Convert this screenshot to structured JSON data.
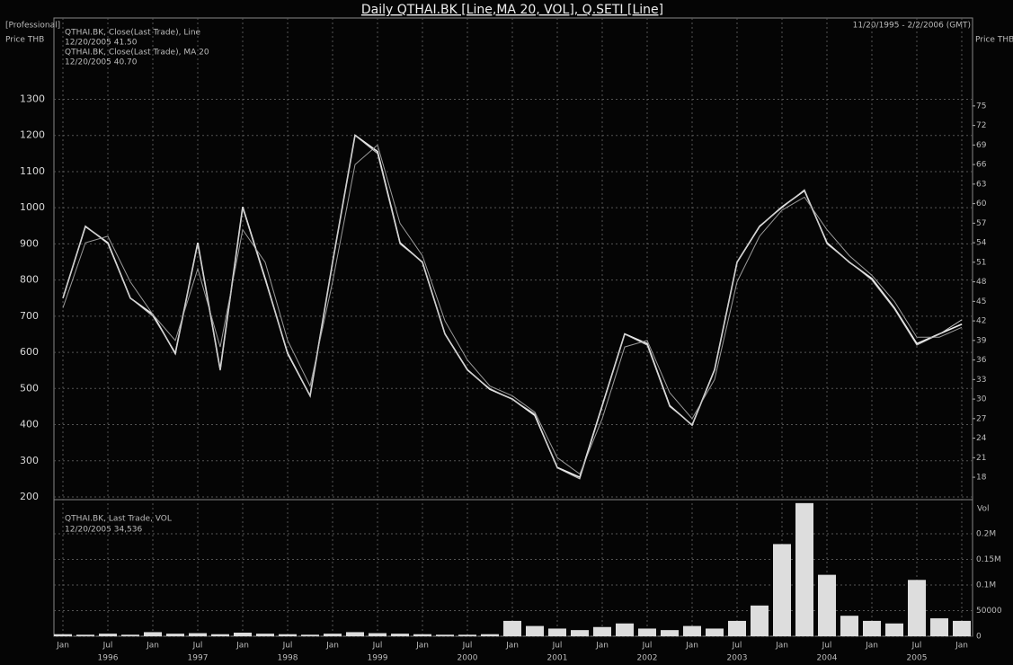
{
  "chart_data": [
    {
      "type": "line",
      "title": "Daily QTHAI.BK [Line,MA 20, VOL], Q.SETI [Line]",
      "edition": "[Professional]",
      "date_range": "11/20/1995 - 2/2/2006 (GMT)",
      "ylabel": "Price THB",
      "y2label": "Price THB",
      "ylim": [
        195,
        1525
      ],
      "yticks": [
        200,
        300,
        400,
        500,
        600,
        700,
        800,
        900,
        1000,
        1100,
        1200,
        1300
      ],
      "y2lim": [
        14.7,
        88.5
      ],
      "y2ticks": [
        18,
        21,
        24,
        27,
        30,
        33,
        36,
        39,
        42,
        45,
        48,
        51,
        54,
        57,
        60,
        63,
        66,
        69,
        72,
        75
      ],
      "grid": true,
      "series": [
        {
          "name": "QTHAI.BK, Close(Last Trade), Line",
          "latest": "12/20/2005 41.50",
          "color": "#f2f2f2",
          "axis": "y2",
          "values": [
            45.5,
            56.5,
            54,
            45.5,
            43,
            37,
            54,
            34.5,
            59.5,
            48.5,
            37,
            30.5,
            51,
            70.5,
            68,
            54,
            51,
            40,
            34.5,
            31.5,
            30,
            27.5,
            19.5,
            18,
            29,
            40,
            38.5,
            29,
            26,
            34.5,
            51,
            56.5,
            59.5,
            62,
            54,
            51,
            48.5,
            44,
            38.5,
            40,
            41.5
          ]
        },
        {
          "name": "QTHAI.BK, Close(Last Trade), MA 20",
          "latest": "12/20/2005 40.70",
          "color": "#9a9a9a",
          "axis": "y2",
          "values": [
            44,
            54,
            55,
            48,
            43,
            39,
            50,
            38,
            56,
            51,
            39,
            32,
            48,
            66,
            69,
            57,
            52,
            42,
            36,
            32,
            30.5,
            28,
            21,
            18.5,
            27,
            38,
            39,
            31,
            27,
            33,
            48,
            55,
            59,
            61,
            56,
            52,
            49,
            45,
            39.5,
            39.5,
            41
          ]
        },
        {
          "color": "#c8c8c8",
          "values": [
            750,
            950,
            900,
            750,
            700,
            600,
            900,
            550,
            1000,
            800,
            600,
            480,
            850,
            1200,
            1150,
            900,
            850,
            650,
            550,
            500,
            470,
            430,
            280,
            250,
            450,
            650,
            620,
            450,
            400,
            550,
            850,
            950,
            1000,
            1050,
            900,
            850,
            800,
            720,
            620,
            650,
            690
          ]
        }
      ]
    },
    {
      "type": "bar",
      "legend": "QTHAI.BK, Last Trade, VOL",
      "latest": "12/20/2005 34,536",
      "y2label": "Vol",
      "color": "#dddddd",
      "categories": [
        "Jan",
        null,
        "Jul",
        null,
        "Jan",
        null,
        "Jul",
        null,
        "Jan",
        null,
        "Jul",
        null,
        "Jan",
        null,
        "Jul",
        null,
        "Jan",
        null,
        "Jul",
        null,
        "Jan",
        null,
        "Jul",
        null,
        "Jan",
        null,
        "Jul",
        null,
        "Jan",
        null,
        "Jul",
        null,
        "Jan",
        null,
        "Jul",
        null,
        "Jan",
        null,
        "Jul",
        null,
        "Jan"
      ],
      "years": [
        "1996",
        "1997",
        "1998",
        "1999",
        "2000",
        "2001",
        "2002",
        "2003",
        "2004",
        "2005"
      ],
      "ylim": [
        0,
        265000
      ],
      "yticks": [
        0,
        50000,
        {
          "value": 100000,
          "label": "0.1M"
        },
        {
          "value": 150000,
          "label": "0.15M"
        },
        {
          "value": 200000,
          "label": "0.2M"
        }
      ],
      "grid": true,
      "values": [
        4000,
        3000,
        5000,
        3000,
        8000,
        5000,
        6000,
        4000,
        7000,
        5000,
        4000,
        3000,
        5000,
        8000,
        6000,
        5000,
        4000,
        3000,
        3000,
        4000,
        30000,
        20000,
        15000,
        12000,
        18000,
        25000,
        15000,
        12000,
        20000,
        15000,
        30000,
        60000,
        180000,
        260000,
        120000,
        40000,
        30000,
        25000,
        110000,
        35000,
        30000
      ]
    }
  ]
}
